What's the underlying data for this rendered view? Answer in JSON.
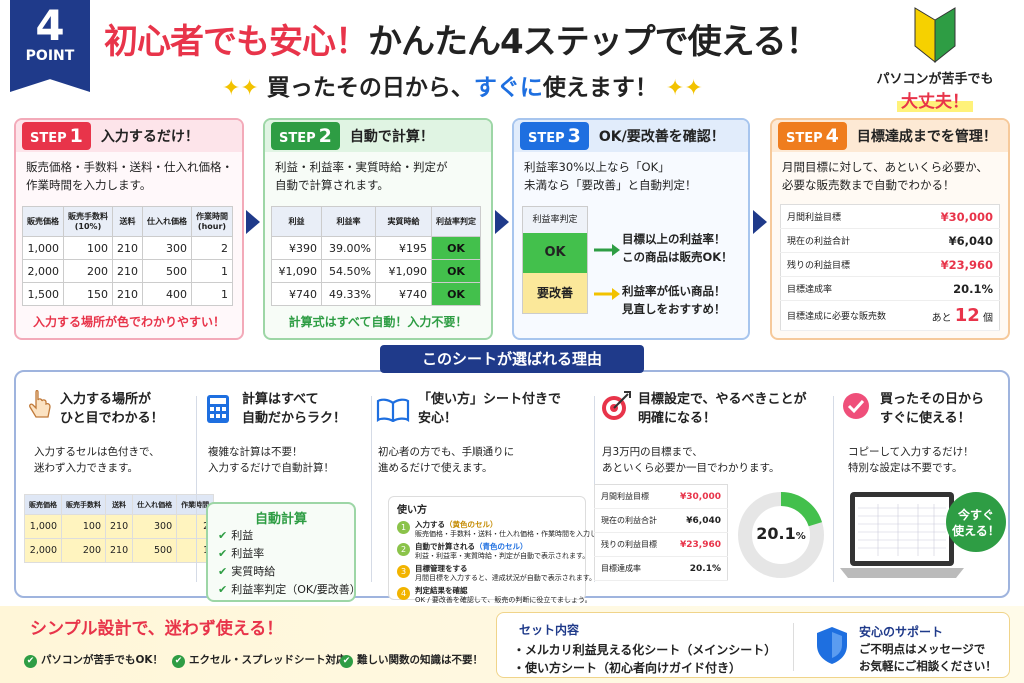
{
  "badge": {
    "number": "4",
    "label": "POINT"
  },
  "header": {
    "title_red": "初心者でも安心！",
    "title_black": "かんたん4ステップで使える！",
    "subtitle_a": "買ったその日から、",
    "subtitle_b": "すぐに",
    "subtitle_c": "使えます！",
    "spark": "✦✦"
  },
  "beginner": {
    "line1": "パソコンが苦手でも",
    "line2": "大丈夫！"
  },
  "steps": [
    {
      "tag": "STEP",
      "num": "1",
      "title": "入力するだけ！",
      "desc1": "販売価格・手数料・送料・仕入れ価格・",
      "desc2": "作業時間を入力します。",
      "headers": [
        "販売価格",
        "販売手数料\n(10%)",
        "送料",
        "仕入れ価格",
        "作業時間\n(hour)"
      ],
      "rows": [
        [
          "1,000",
          "100",
          "210",
          "300",
          "2"
        ],
        [
          "2,000",
          "200",
          "210",
          "500",
          "1"
        ],
        [
          "1,500",
          "150",
          "210",
          "400",
          "1"
        ]
      ],
      "footer": "入力する場所が色でわかりやすい！"
    },
    {
      "tag": "STEP",
      "num": "2",
      "title": "自動で計算！",
      "desc1": "利益・利益率・実質時給・判定が",
      "desc2": "自動で計算されます。",
      "headers": [
        "利益",
        "利益率",
        "実質時給",
        "利益率判定"
      ],
      "rows": [
        [
          "¥390",
          "39.00%",
          "¥195",
          "OK"
        ],
        [
          "¥1,090",
          "54.50%",
          "¥1,090",
          "OK"
        ],
        [
          "¥740",
          "49.33%",
          "¥740",
          "OK"
        ]
      ],
      "footer": "計算式はすべて自動！入力不要！"
    },
    {
      "tag": "STEP",
      "num": "3",
      "title": "OK/要改善を確認！",
      "desc1": "利益率30%以上なら「OK」",
      "desc2": "未満なら「要改善」と自動判定！",
      "judge_header": "利益率判定",
      "ok": "OK",
      "ng": "要改善",
      "ok_msg1": "目標以上の利益率！",
      "ok_msg2": "この商品は販売OK！",
      "ng_msg1": "利益率が低い商品！",
      "ng_msg2": "見直しをおすすめ！"
    },
    {
      "tag": "STEP",
      "num": "4",
      "title": "目標達成までを管理！",
      "desc1": "月間目標に対して、あといくら必要か、",
      "desc2": "必要な販売数まで自動でわかる！",
      "rows": [
        [
          "月間利益目標",
          "¥30,000"
        ],
        [
          "現在の利益合計",
          "¥6,040"
        ],
        [
          "残りの利益目標",
          "¥23,960"
        ],
        [
          "目標達成率",
          "20.1%"
        ]
      ],
      "need_label": "目標達成に必要な販売数",
      "need_pre": "あと",
      "need_num": "12",
      "need_unit": "個"
    }
  ],
  "reasons_title": "このシートが選ばれる理由",
  "reasons": [
    {
      "t1": "入力する場所が",
      "t2": "ひと目でわかる！",
      "d1": "入力するセルは色付きで、",
      "d2": "迷わず入力できます。",
      "headers": [
        "販売価格",
        "販売手数料",
        "送料",
        "仕入れ価格",
        "作業時間"
      ],
      "rows": [
        [
          "1,000",
          "100",
          "210",
          "300",
          "2"
        ],
        [
          "2,000",
          "200",
          "210",
          "500",
          "1"
        ]
      ]
    },
    {
      "t1": "計算はすべて",
      "t2": "自動だからラク！",
      "d1": "複雑な計算は不要！",
      "d2": "入力するだけで自動計算！",
      "box_title": "自動計算",
      "items": [
        "利益",
        "利益率",
        "実質時給",
        "利益率判定（OK/要改善）"
      ]
    },
    {
      "t1": "「使い方」シート付きで",
      "t2": "安心！",
      "d1": "初心者の方でも、手順通りに",
      "d2": "進めるだけで使えます。",
      "guide_title": "使い方",
      "guide": [
        {
          "n": "1",
          "h": "入力する",
          "hc": "（黄色のセル）",
          "d": "販売価格・手数料・送料・仕入れ価格・作業時間を入力します。"
        },
        {
          "n": "2",
          "h": "自動で計算される",
          "hc": "（青色のセル）",
          "d": "利益・利益率・実質時給・判定が自動で表示されます。"
        },
        {
          "n": "3",
          "h": "目標管理をする",
          "hc": "",
          "d": "月間目標を入力すると、達成状況が自動で表示されます。"
        },
        {
          "n": "4",
          "h": "判定結果を確認",
          "hc": "",
          "d": "OK / 要改善を確認して、販売の判断に役立てましょう。"
        }
      ]
    },
    {
      "t1": "目標設定で、やるべきことが",
      "t2": "明確になる！",
      "d1": "月3万円の目標まで、",
      "d2": "あといくら必要か一目でわかります。",
      "rows": [
        [
          "月間利益目標",
          "¥30,000"
        ],
        [
          "現在の利益合計",
          "¥6,040"
        ],
        [
          "残りの利益目標",
          "¥23,960"
        ],
        [
          "目標達成率",
          "20.1%"
        ]
      ],
      "donut_value": "20.1",
      "donut_unit": "%",
      "donut_fraction": 0.201
    },
    {
      "t1": "買ったその日から",
      "t2": "すぐに使える！",
      "d1": "コピーして入力するだけ！",
      "d2": "特別な設定は不要です。",
      "bubble1": "今すぐ",
      "bubble2": "使える！"
    }
  ],
  "bottom": {
    "simple": "シンプル設計で、迷わず使える！",
    "bullets": [
      "パソコンが苦手でもOK！",
      "エクセル・スプレッドシート対応",
      "難しい関数の知識は不要！"
    ],
    "set_title": "セット内容",
    "set_items": [
      "・メルカリ利益見える化シート（メインシート）",
      "・使い方シート（初心者向けガイド付き）"
    ],
    "support_title": "安心のサポート",
    "support1": "ご不明点はメッセージで",
    "support2": "お気軽にご相談ください！"
  },
  "colors": {
    "navy": "#1f3a8a",
    "red": "#e8344a",
    "green": "#2e9d44",
    "blue": "#1e6fe0",
    "orange": "#ef7d1e"
  }
}
